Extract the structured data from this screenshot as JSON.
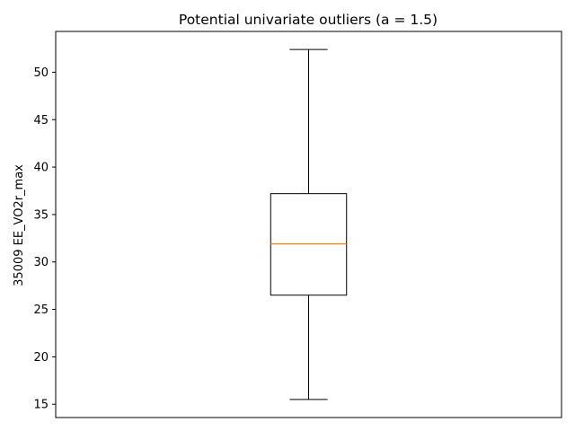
{
  "chart_data": {
    "type": "box",
    "title": "Potential univariate outliers (a = 1.5)",
    "xlabel": "",
    "ylabel": "35009 EE_VO2r_max",
    "ylim": [
      13.6,
      54.3
    ],
    "yticks": [
      15,
      20,
      25,
      30,
      35,
      40,
      45,
      50
    ],
    "grid": false,
    "series": [
      {
        "whisker_low": 15.5,
        "q1": 26.5,
        "median": 31.9,
        "q3": 37.2,
        "whisker_high": 52.4,
        "outliers": []
      }
    ],
    "colors": {
      "box": "#000000",
      "median": "#ff7f0e",
      "axes": "#000000"
    }
  }
}
